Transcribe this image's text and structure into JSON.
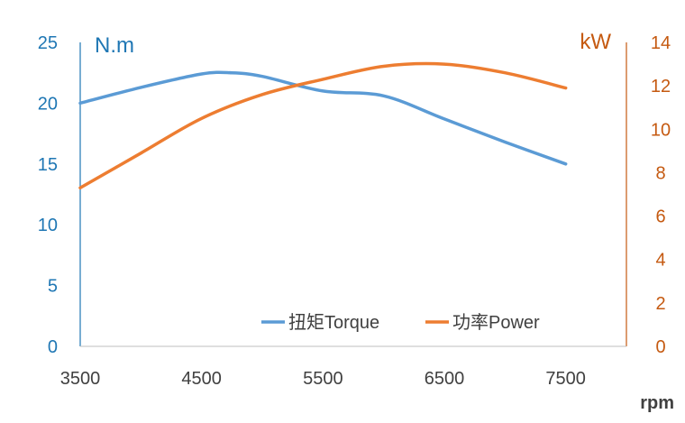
{
  "chart_data": {
    "type": "line",
    "x_label": "rpm",
    "x_ticks": [
      3500,
      4500,
      5500,
      6500,
      7500
    ],
    "x_range": [
      3500,
      8000
    ],
    "left_axis": {
      "unit": "N.m",
      "range": [
        0,
        25
      ],
      "ticks": [
        0,
        5,
        10,
        15,
        20,
        25
      ],
      "color": "#1f77b4"
    },
    "right_axis": {
      "unit": "kW",
      "range": [
        0,
        14
      ],
      "ticks": [
        0,
        2,
        4,
        6,
        8,
        10,
        12,
        14
      ],
      "color": "#c55a11"
    },
    "grid": false,
    "legend_position": "bottom-right",
    "series": [
      {
        "name": "扭矩Torque",
        "axis": "left",
        "color": "#5b9bd5",
        "x": [
          3500,
          4000,
          4500,
          4750,
          5000,
          5500,
          6000,
          6500,
          7000,
          7500
        ],
        "values": [
          20.0,
          21.3,
          22.4,
          22.5,
          22.2,
          21.0,
          20.6,
          18.7,
          16.8,
          15.0
        ]
      },
      {
        "name": "功率Power",
        "axis": "right",
        "color": "#ed7d31",
        "x": [
          3500,
          4000,
          4500,
          5000,
          5500,
          6000,
          6500,
          7000,
          7500
        ],
        "values": [
          7.3,
          8.9,
          10.5,
          11.6,
          12.3,
          12.9,
          13.0,
          12.6,
          11.9
        ]
      }
    ]
  }
}
